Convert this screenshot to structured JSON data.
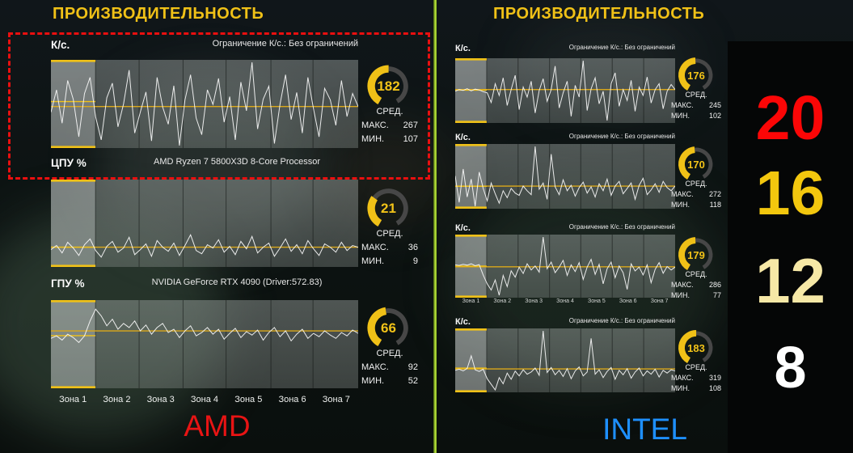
{
  "chart_data": {
    "type": "line",
    "stat_labels": {
      "avg": "СРЕД.",
      "max": "МАКС.",
      "min": "МИН."
    },
    "x_labels": [
      "Зона 1",
      "Зона 2",
      "Зона 3",
      "Зона 4",
      "Зона 5",
      "Зона 6",
      "Зона 7"
    ],
    "groups": [
      {
        "title": "ПРОИЗВОДИТЕЛЬНОСТЬ",
        "brand": "AMD",
        "brand_color": "#e81414",
        "zone_bounds": [
          0.145,
          0.287,
          0.43,
          0.57,
          0.716,
          0.853
        ],
        "panels": [
          {
            "metric": "К/с.",
            "info": "Ограничение К/с.: Без ограничений",
            "info_pos": "right",
            "scale": "minmax",
            "avg": 182,
            "max": 267,
            "min": 107,
            "gauge_fill": 0.5,
            "series": [
              171,
              214,
              150,
              232,
              196,
              124,
              207,
              238,
              162,
              118,
              199,
              227,
              143,
              187,
              252,
              131,
              171,
              210,
              116,
              238,
              181,
              148,
              222,
              107,
              195,
              243,
              160,
              128,
              214,
              186,
              236,
              152,
              201,
              118,
              229,
              174,
              267,
              139,
              196,
              221,
              111,
              186,
              243,
              157,
              209,
              131,
              238,
              178,
              124,
              217,
              195,
              146,
              232,
              163,
              207,
              182
            ]
          },
          {
            "metric": "ЦПУ %",
            "info": "AMD Ryzen 7 5800X3D 8-Core Processor",
            "info_pos": "center",
            "scale": "percent",
            "avg": 21,
            "max": 36,
            "min": 9,
            "gauge_fill": 0.32,
            "series": [
              18,
              23,
              14,
              27,
              20,
              11,
              24,
              31,
              17,
              9,
              22,
              28,
              15,
              20,
              33,
              12,
              18,
              25,
              10,
              29,
              21,
              16,
              26,
              11,
              23,
              36,
              17,
              13,
              24,
              20,
              30,
              15,
              22,
              12,
              28,
              19,
              34,
              14,
              21,
              26,
              10,
              20,
              31,
              16,
              24,
              13,
              29,
              19,
              11,
              25,
              21,
              15,
              27,
              17,
              23,
              21
            ]
          },
          {
            "metric": "ГПУ %",
            "info": "NVIDIA GeForce RTX 4090 (Driver:572.83)",
            "info_pos": "center",
            "scale": "percent",
            "avg": 66,
            "max": 92,
            "min": 52,
            "gauge_fill": 0.47,
            "series": [
              57,
              60,
              55,
              62,
              58,
              52,
              60,
              78,
              92,
              84,
              72,
              80,
              68,
              75,
              70,
              78,
              66,
              73,
              62,
              70,
              75,
              64,
              68,
              58,
              66,
              72,
              60,
              64,
              70,
              62,
              68,
              56,
              63,
              69,
              58,
              65,
              61,
              67,
              55,
              64,
              70,
              59,
              66,
              54,
              62,
              68,
              57,
              63,
              59,
              66,
              61,
              57,
              64,
              60,
              67,
              63
            ]
          }
        ]
      },
      {
        "title": "ПРОИЗВОДИТЕЛЬНОСТЬ",
        "brand": "INTEL",
        "brand_color": "#1e90ff",
        "zone_bounds": [
          0.143,
          0.286,
          0.429,
          0.571,
          0.714,
          0.857
        ],
        "panels": [
          {
            "metric": "К/с.",
            "info": "Ограничение К/с.: Без ограничений",
            "info_pos": "right",
            "scale": "minmax",
            "avg": 176,
            "max": 245,
            "min": 102,
            "gauge_fill": 0.49,
            "series": [
              172,
              176,
              174,
              178,
              173,
              177,
              175,
              171,
              168,
              145,
              190,
              162,
              204,
              138,
              176,
              210,
              128,
              182,
              158,
              196,
              120,
              174,
              202,
              148,
              176,
              232,
              132,
              168,
              196,
              112,
              186,
              158,
              245,
              126,
              178,
              204,
              142,
              172,
              102,
              190,
              216,
              136,
              176,
              150,
              198,
              124,
              182,
              162,
              206,
              144,
              176,
              190,
              130,
              172,
              188,
              176
            ]
          },
          {
            "metric": "К/с.",
            "info": "Ограничение К/с.: Без ограничений",
            "info_pos": "right",
            "scale": "minmax",
            "avg": 170,
            "max": 272,
            "min": 118,
            "gauge_fill": 0.48,
            "series": [
              196,
              128,
              214,
              142,
              188,
              118,
              206,
              164,
              132,
              178,
              150,
              126,
              158,
              140,
              164,
              152,
              146,
              170,
              158,
              148,
              272,
              162,
              178,
              136,
              252,
              168,
              148,
              186,
              158,
              172,
              144,
              166,
              180,
              152,
              168,
              142,
              176,
              158,
              188,
              146,
              170,
              182,
              150,
              164,
              178,
              136,
              172,
              190,
              148,
              160,
              176,
              154,
              182,
              166,
              158,
              170
            ]
          },
          {
            "metric": "К/с.",
            "info": "Ограничение К/с.: Без ограничений",
            "info_pos": "right",
            "scale": "minmax",
            "avg": 179,
            "max": 286,
            "min": 77,
            "gauge_fill": 0.49,
            "series": [
              186,
              184,
              188,
              185,
              190,
              183,
              187,
              150,
              118,
              96,
              132,
              77,
              148,
              108,
              165,
              142,
              178,
              155,
              190,
              168,
              182,
              160,
              286,
              172,
              196,
              158,
              178,
              202,
              148,
              186,
              162,
              194,
              134,
              178,
              206,
              152,
              188,
              118,
              172,
              196,
              140,
              182,
              158,
              98,
              190,
              164,
              178,
              150,
              186,
              122,
              170,
              194,
              156,
              180,
              168,
              178
            ]
          },
          {
            "metric": "К/с.",
            "info": "Ограничение К/с.: Без ограничений",
            "info_pos": "right",
            "scale": "minmax",
            "avg": 183,
            "max": 319,
            "min": 108,
            "gauge_fill": 0.5,
            "series": [
              178,
              182,
              176,
              185,
              230,
              180,
              174,
              182,
              148,
              128,
              108,
              152,
              130,
              168,
              146,
              175,
              158,
              180,
              164,
              172,
              186,
              160,
              319,
              170,
              188,
              162,
              178,
              156,
              184,
              148,
              176,
              190,
              158,
              172,
              292,
              164,
              180,
              152,
              174,
              188,
              146,
              178,
              162,
              184,
              150,
              172,
              186,
              158,
              176,
              164,
              182,
              154,
              178,
              168,
              180,
              176
            ]
          }
        ]
      }
    ],
    "legend_numbers": [
      {
        "text": "20",
        "color": "#fb0606"
      },
      {
        "text": "16",
        "color": "#f3c70e"
      },
      {
        "text": "12",
        "color": "#f6e8a6"
      },
      {
        "text": "8",
        "color": "#ffffff"
      }
    ]
  },
  "accent": {
    "yellow": "#f0c117",
    "red_box": "#ea0f0f",
    "divider": "#b9e23c"
  }
}
